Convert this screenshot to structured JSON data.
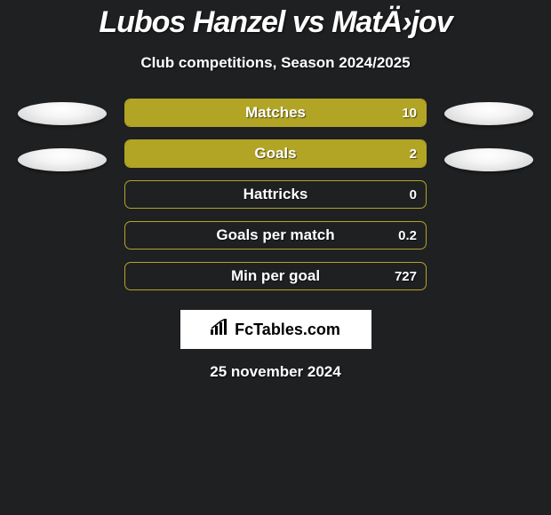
{
  "title": "Lubos Hanzel vs MatÄ›jov",
  "subtitle": "Club competitions, Season 2024/2025",
  "date": "25 november 2024",
  "logo_text": "FcTables.com",
  "colors": {
    "background": "#1f2022",
    "bar_fill": "#b2a525",
    "bar_border": "#b2a525",
    "text": "#ffffff"
  },
  "left_balls_count": 2,
  "right_balls_count": 2,
  "bars": [
    {
      "label": "Matches",
      "value": "10",
      "fill_pct": 100
    },
    {
      "label": "Goals",
      "value": "2",
      "fill_pct": 100
    },
    {
      "label": "Hattricks",
      "value": "0",
      "fill_pct": 0
    },
    {
      "label": "Goals per match",
      "value": "0.2",
      "fill_pct": 0
    },
    {
      "label": "Min per goal",
      "value": "727",
      "fill_pct": 0
    }
  ]
}
